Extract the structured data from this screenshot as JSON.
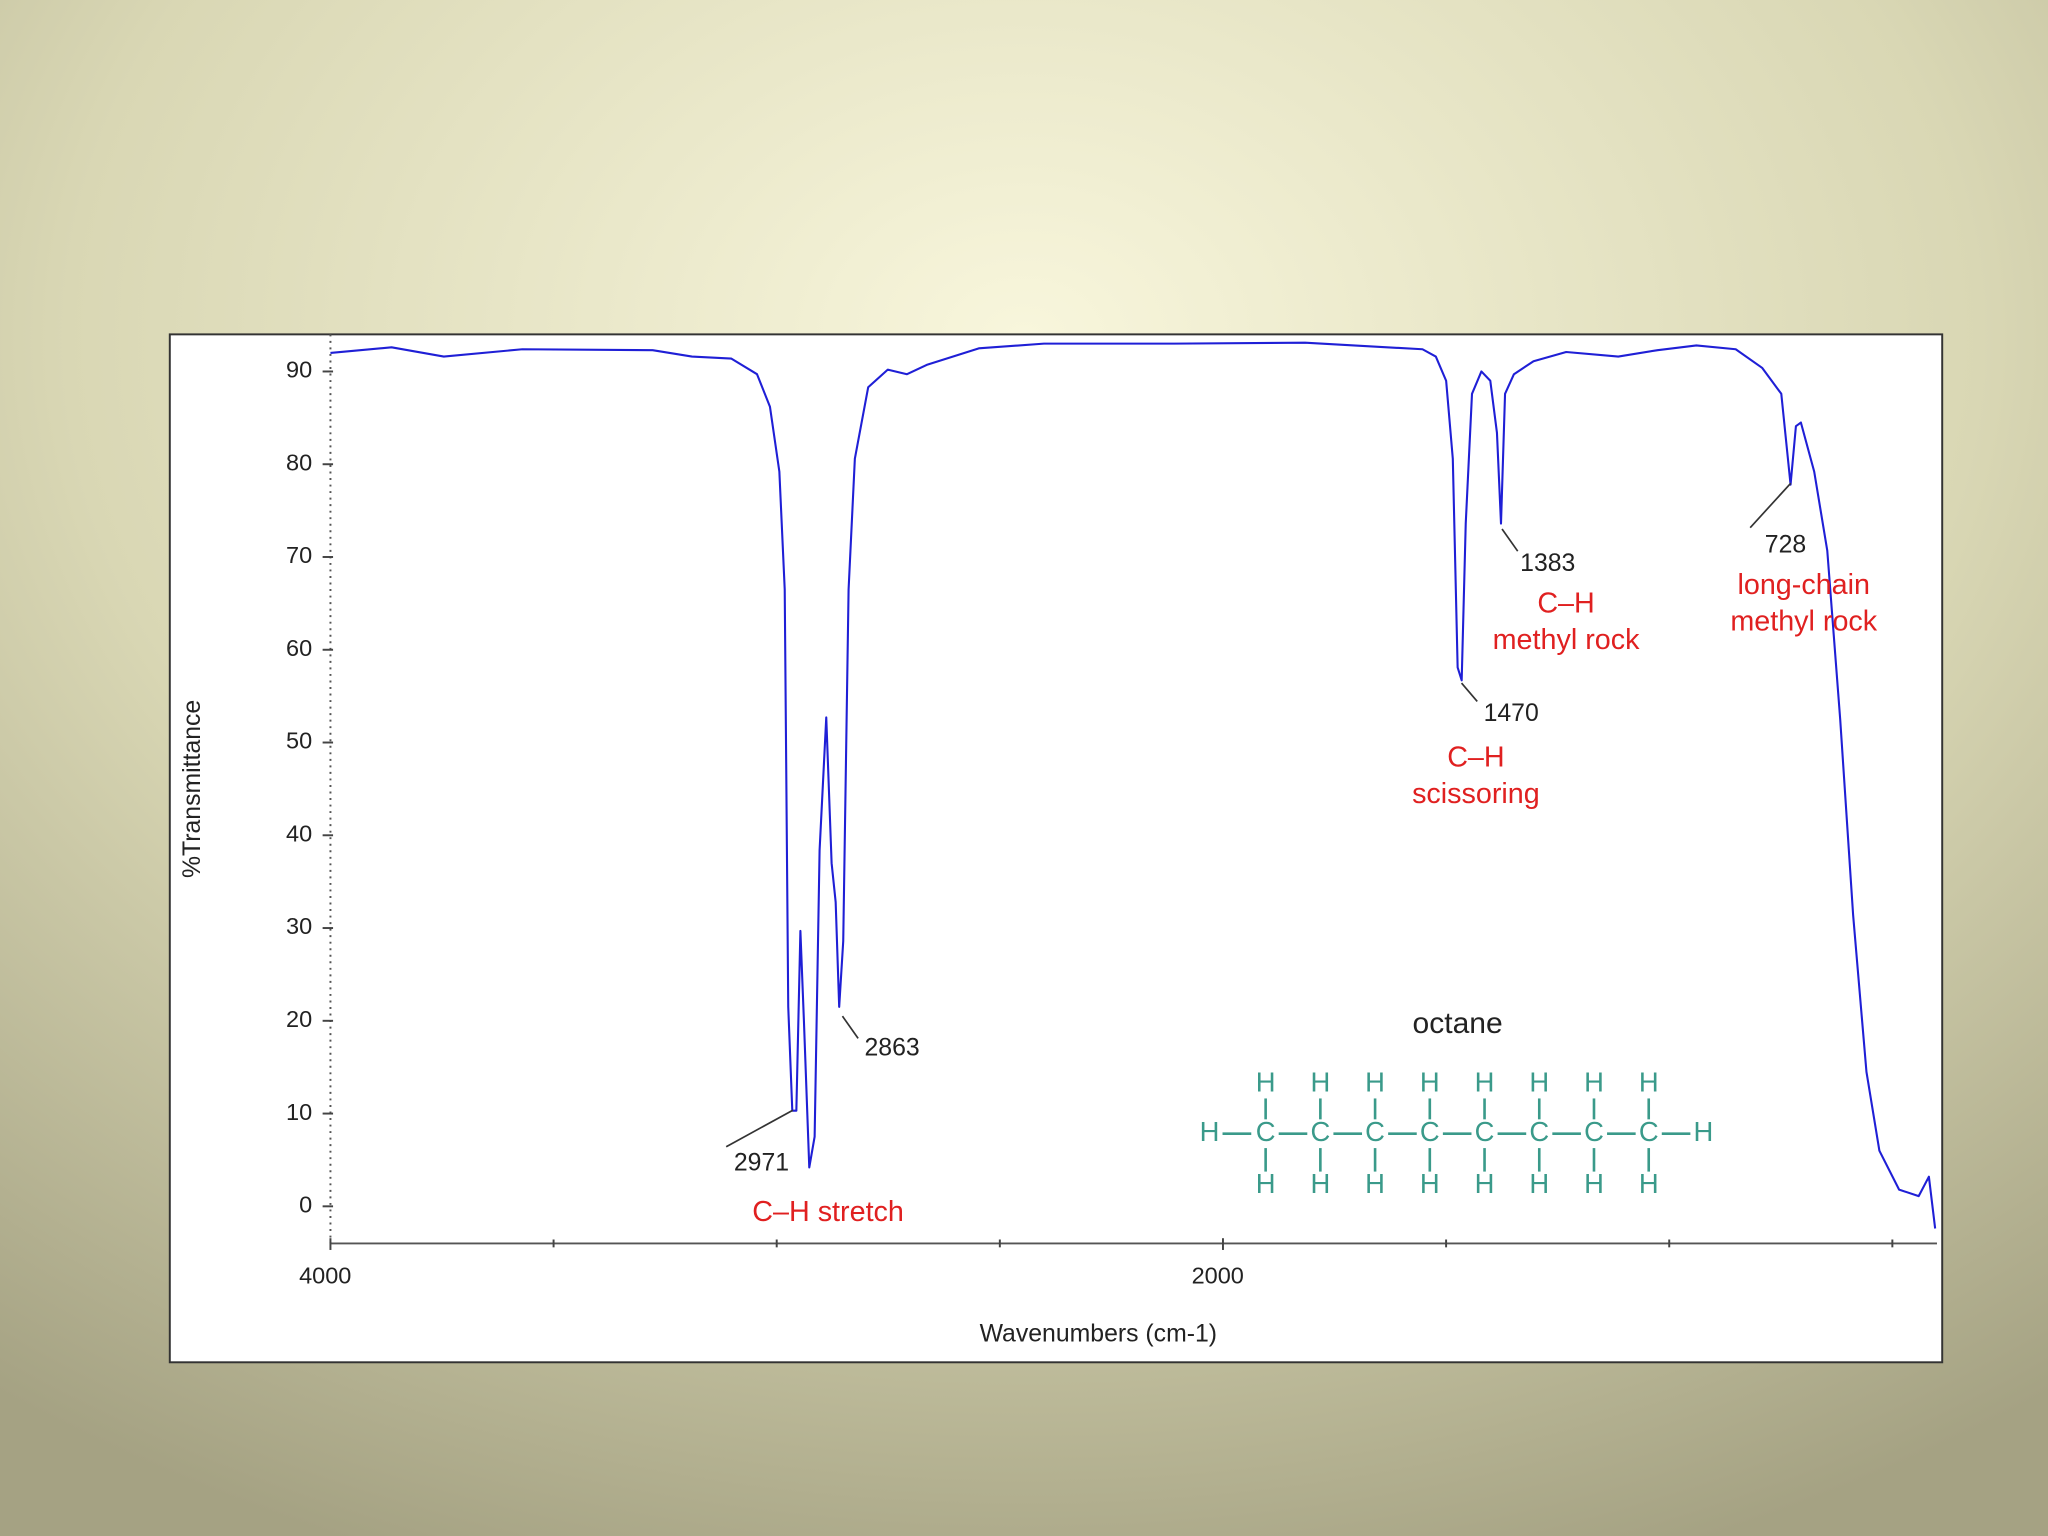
{
  "chart_data": {
    "type": "line",
    "xlabel": "Wavenumbers (cm-1)",
    "ylabel": "%Transmittance",
    "color": "#1f1fd6",
    "xlim": [
      4000,
      400
    ],
    "xticks": [
      4000,
      2000
    ],
    "xminor": [
      3500,
      3000,
      2500,
      1500,
      1000,
      500
    ],
    "ylim": [
      -4,
      94
    ],
    "yticks": [
      0,
      10,
      20,
      30,
      40,
      50,
      60,
      70,
      80,
      90
    ],
    "x": [
      4000,
      3863,
      3746,
      3570,
      3278,
      3190,
      3102,
      3044,
      3015,
      2994,
      2982,
      2974,
      2965,
      2956,
      2947,
      2939,
      2927,
      2915,
      2904,
      2889,
      2877,
      2868,
      2860,
      2851,
      2839,
      2825,
      2795,
      2751,
      2708,
      2664,
      2547,
      2401,
      2108,
      1816,
      1553,
      1523,
      1500,
      1485,
      1474,
      1465,
      1456,
      1442,
      1421,
      1401,
      1386,
      1377,
      1368,
      1348,
      1304,
      1231,
      1114,
      1026,
      939,
      851,
      792,
      749,
      728,
      716,
      705,
      675,
      646,
      617,
      588,
      558,
      529,
      485,
      441,
      418,
      404
    ],
    "values": [
      92,
      92.6,
      91.6,
      92.4,
      92.3,
      91.6,
      91.4,
      89.7,
      86.2,
      79.2,
      66.5,
      21.5,
      10.3,
      10.3,
      29.7,
      20,
      4.2,
      7.5,
      38.4,
      52.7,
      37,
      32.8,
      21.5,
      28.6,
      66.5,
      80.6,
      88.3,
      90.2,
      89.7,
      90.7,
      92.5,
      93,
      93,
      93.1,
      92.4,
      91.6,
      89,
      80.6,
      58.1,
      56.7,
      73.6,
      87.6,
      90,
      89,
      83.4,
      73.6,
      87.6,
      89.7,
      91.1,
      92.1,
      91.6,
      92.3,
      92.8,
      92.4,
      90.4,
      87.6,
      77.8,
      84.1,
      84.5,
      79.2,
      70.7,
      52.5,
      31.4,
      14.5,
      6,
      1.8,
      1.1,
      3.2,
      -2.4
    ],
    "annotations": [
      {
        "label": "2971",
        "note": [
          "C–H stretch"
        ]
      },
      {
        "label": "2863"
      },
      {
        "label": "1470",
        "note": [
          "C–H",
          "scissoring"
        ]
      },
      {
        "label": "1383",
        "note": [
          "C–H",
          "methyl rock"
        ]
      },
      {
        "label": "728",
        "note": [
          "long-chain",
          "methyl rock"
        ]
      }
    ],
    "molecule": {
      "name": "octane",
      "carbon": "C",
      "hydrogen": "H"
    }
  }
}
